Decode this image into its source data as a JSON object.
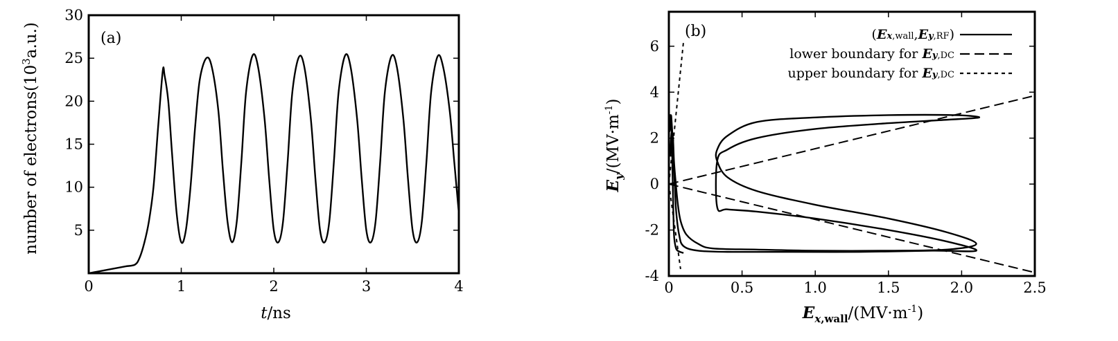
{
  "chart_data": [
    {
      "type": "line",
      "panel_label": "(a)",
      "xlabel": {
        "italic": "t",
        "rest": "/ns"
      },
      "ylabel": {
        "pre": "number of electrons(10",
        "sup": "3",
        "post": "a.u.)"
      },
      "xlim": [
        0,
        4
      ],
      "ylim": [
        0,
        30
      ],
      "xticks": [
        0,
        1,
        2,
        3,
        4
      ],
      "yticks": [
        5,
        10,
        15,
        20,
        25,
        30
      ],
      "grid": false,
      "series": [
        {
          "color": "#000000",
          "x": [
            0,
            0.1,
            0.2,
            0.3,
            0.4,
            0.5,
            0.55,
            0.6,
            0.65,
            0.7,
            0.75,
            0.8,
            0.82,
            0.86,
            0.9,
            0.95,
            1.0,
            1.05,
            1.1,
            1.15,
            1.2,
            1.27,
            1.33,
            1.4,
            1.45,
            1.5,
            1.55,
            1.6,
            1.65,
            1.7,
            1.77,
            1.83,
            1.9,
            1.95,
            2.0,
            2.05,
            2.1,
            2.15,
            2.2,
            2.27,
            2.33,
            2.4,
            2.45,
            2.5,
            2.55,
            2.6,
            2.65,
            2.7,
            2.77,
            2.83,
            2.9,
            2.95,
            3.0,
            3.05,
            3.1,
            3.15,
            3.2,
            3.27,
            3.33,
            3.4,
            3.45,
            3.5,
            3.55,
            3.6,
            3.65,
            3.7,
            3.77,
            3.83,
            3.9,
            3.95,
            4.0
          ],
          "y": [
            0,
            0.2,
            0.4,
            0.6,
            0.8,
            1.0,
            1.8,
            3.5,
            6,
            10,
            17,
            23.5,
            23,
            20,
            14,
            7,
            3.6,
            5,
            10,
            17,
            22.5,
            25,
            24,
            19,
            12,
            6,
            3.6,
            6,
            13,
            21,
            25.3,
            24,
            18,
            11,
            5,
            3.6,
            6,
            13,
            21,
            25.1,
            24,
            18,
            11,
            5,
            3.6,
            6,
            13,
            21,
            25.3,
            24,
            18,
            11,
            5,
            3.6,
            6,
            13,
            21,
            25.2,
            24,
            18,
            11,
            5,
            3.6,
            6,
            13,
            21,
            25.2,
            24,
            19,
            13,
            7
          ]
        }
      ]
    },
    {
      "type": "line",
      "panel_label": "(b)",
      "xlabel": {
        "bold": "E",
        "bold_sub": "x",
        "sub": ",wall",
        "rest": "/(MV·m",
        "sup": "-1",
        "post": ")"
      },
      "ylabel": {
        "bold": "E",
        "sub": "y",
        "rest": "/(MV·m",
        "sup": "-1",
        "post": ")"
      },
      "xlim": [
        0,
        2.5
      ],
      "ylim": [
        -4,
        7.5
      ],
      "xticks": [
        0,
        0.5,
        1.0,
        1.5,
        2.0,
        2.5
      ],
      "xticklabels": [
        "0",
        "0.5",
        "1.0",
        "1.5",
        "2.0",
        "2.5"
      ],
      "yticks": [
        -4,
        -2,
        0,
        2,
        4,
        6
      ],
      "grid": false,
      "legend_position": "top-right",
      "series": [
        {
          "name_parts": [
            {
              "t": "(",
              "s": "n"
            },
            {
              "t": "E",
              "s": "b"
            },
            {
              "t": "x",
              "s": "bsub"
            },
            {
              "t": ",wall",
              "s": "sub"
            },
            {
              "t": ",",
              "s": "n"
            },
            {
              "t": "E",
              "s": "b"
            },
            {
              "t": "y",
              "s": "bsub"
            },
            {
              "t": ",RF",
              "s": "sub"
            },
            {
              "t": ")",
              "s": "n"
            }
          ],
          "style": "solid",
          "x": [
            0.1,
            0.06,
            0.045,
            0.035,
            0.03,
            0.025,
            0.02,
            0.015,
            0.01,
            0.005,
            0.005,
            0.01,
            0.015,
            0.02,
            0.03,
            0.04,
            0.05,
            0.07,
            0.1,
            0.2,
            0.4,
            0.8,
            1.3,
            1.8,
            2.1,
            1.9,
            1.5,
            1.0,
            0.6,
            0.4,
            0.33,
            0.33,
            0.4,
            0.6,
            1.0,
            1.5,
            1.9,
            2.12,
            1.95,
            1.5,
            1.0,
            0.6,
            0.4,
            0.33,
            0.33,
            0.4,
            0.6,
            1.0,
            1.5,
            1.9,
            2.1,
            1.9,
            1.5,
            1.0,
            0.6,
            0.3,
            0.2,
            0.12,
            0.08,
            0.06,
            0.045,
            0.035,
            0.03,
            0.025,
            0.02,
            0.015,
            0.01
          ],
          "y": [
            -3.0,
            -2.9,
            -2.7,
            -2.2,
            -1.0,
            0.5,
            2.0,
            2.8,
            3.0,
            2.7,
            2.3,
            2.6,
            3.0,
            2.6,
            1.5,
            0.0,
            -1.2,
            -2.2,
            -2.7,
            -2.9,
            -2.95,
            -2.95,
            -2.95,
            -2.9,
            -2.9,
            -2.5,
            -2.0,
            -1.5,
            -1.2,
            -1.1,
            -1.0,
            1.0,
            1.5,
            2.0,
            2.4,
            2.65,
            2.8,
            2.9,
            3.0,
            3.0,
            2.9,
            2.7,
            2.1,
            1.5,
            1.0,
            0.3,
            -0.3,
            -0.9,
            -1.5,
            -2.1,
            -2.6,
            -2.85,
            -2.9,
            -2.9,
            -2.85,
            -2.8,
            -2.6,
            -2.2,
            -1.6,
            -0.8,
            0.2,
            1.0,
            1.8,
            2.2,
            2.3,
            2.0,
            1.2
          ]
        },
        {
          "name_parts": [
            {
              "t": "lower boundary for ",
              "s": "n"
            },
            {
              "t": "E",
              "s": "b"
            },
            {
              "t": "y",
              "s": "bsub"
            },
            {
              "t": ",DC",
              "s": "sub"
            }
          ],
          "style": "dashed",
          "lines": [
            {
              "x": [
                0,
                2.5
              ],
              "y": [
                0,
                3.85
              ]
            },
            {
              "x": [
                0,
                2.5
              ],
              "y": [
                0,
                -3.85
              ]
            }
          ]
        },
        {
          "name_parts": [
            {
              "t": "upper boundary for ",
              "s": "n"
            },
            {
              "t": "E",
              "s": "b"
            },
            {
              "t": "y",
              "s": "bsub"
            },
            {
              "t": ",DC",
              "s": "sub"
            }
          ],
          "style": "dotted",
          "lines": [
            {
              "x": [
                0,
                0.1
              ],
              "y": [
                0,
                6.2
              ]
            },
            {
              "x": [
                0,
                0.08
              ],
              "y": [
                0,
                -3.7
              ]
            }
          ]
        }
      ]
    }
  ]
}
